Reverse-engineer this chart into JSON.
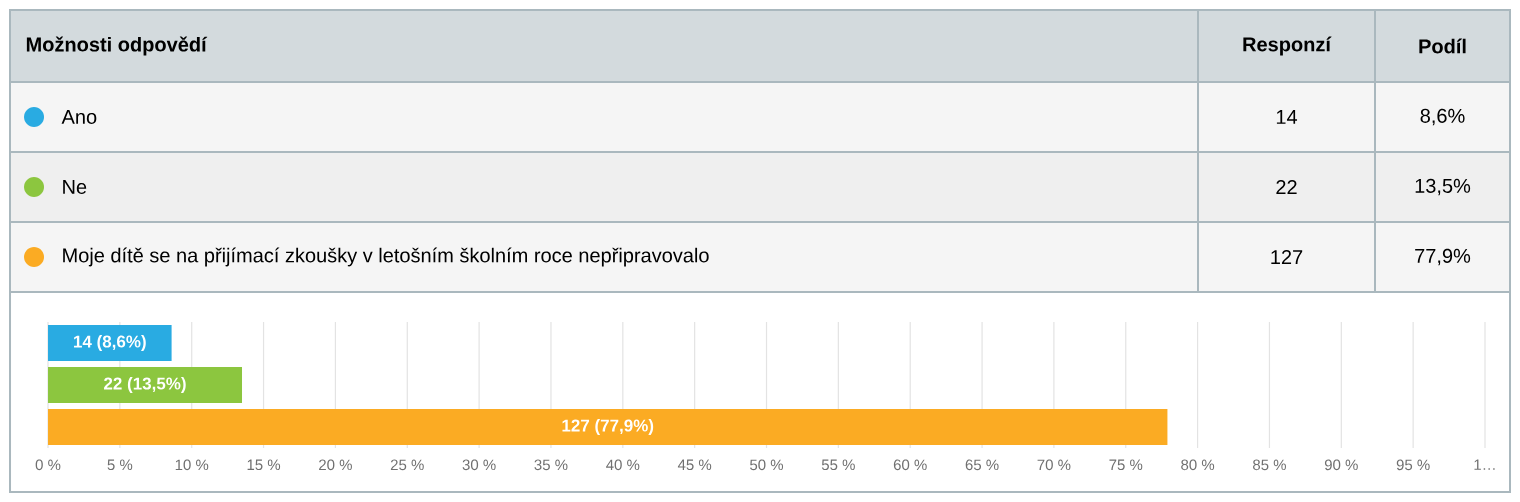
{
  "chart_data": {
    "type": "bar",
    "orientation": "horizontal",
    "categories": [
      null,
      null,
      null
    ],
    "values": [
      8.6,
      13.5,
      77.9
    ],
    "colors": [
      "#29abe2",
      "#8cc63f",
      "#fbab23"
    ],
    "value_labels": [
      "14 (8,6%)",
      "22 (13,5%)",
      "127 (77,9%)"
    ],
    "annotations": [
      "Možnosti odpovědí",
      "Responzí",
      "Podíl",
      "Ano",
      "14",
      "8,6%",
      "Ne",
      "22",
      "13,5%",
      "Moje dítě se na přijímací zkoušky v letošním školním roce nepřipravovalo",
      "127",
      "77,9%"
    ],
    "xlim": [
      0,
      100
    ],
    "xticks": [
      {
        "value": 0,
        "label": "0 %"
      },
      {
        "value": 5,
        "label": "5 %"
      },
      {
        "value": 10,
        "label": "10 %"
      },
      {
        "value": 15,
        "label": "15 %"
      },
      {
        "value": 20,
        "label": "20 %"
      },
      {
        "value": 25,
        "label": "25 %"
      },
      {
        "value": 30,
        "label": "30 %"
      },
      {
        "value": 35,
        "label": "35 %"
      },
      {
        "value": 40,
        "label": "40 %"
      },
      {
        "value": 45,
        "label": "45 %"
      },
      {
        "value": 50,
        "label": "50 %"
      },
      {
        "value": 55,
        "label": "55 %"
      },
      {
        "value": 60,
        "label": "60 %"
      },
      {
        "value": 65,
        "label": "65 %"
      },
      {
        "value": 70,
        "label": "70 %"
      },
      {
        "value": 75,
        "label": "75 %"
      },
      {
        "value": 80,
        "label": "80 %"
      },
      {
        "value": 85,
        "label": "85 %"
      },
      {
        "value": 90,
        "label": "90 %"
      },
      {
        "value": 95,
        "label": "95 %"
      },
      {
        "value": 100,
        "label": "1…"
      }
    ],
    "grid": "x",
    "tick_labels": "x"
  }
}
